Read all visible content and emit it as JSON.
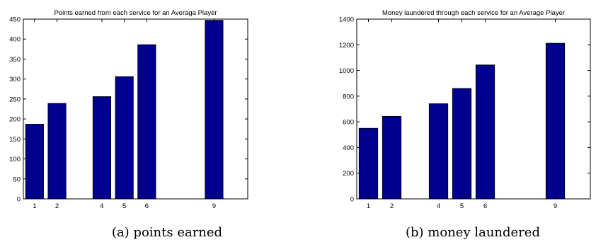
{
  "chart_data": [
    {
      "type": "bar",
      "title": "Points earned from each service for an Averaga Player",
      "xlabel": "",
      "ylabel": "",
      "categories": [
        "1",
        "2",
        "4",
        "5",
        "6",
        "9"
      ],
      "x": [
        1,
        2,
        4,
        5,
        6,
        9
      ],
      "values": [
        187,
        239,
        256,
        306,
        386,
        447
      ],
      "xlim": [
        0.5,
        10.5
      ],
      "ylim": [
        0,
        450
      ],
      "yticks": [
        0,
        50,
        100,
        150,
        200,
        250,
        300,
        350,
        400,
        450
      ],
      "grid": false,
      "bar_color": "#00008f",
      "caption": "(a) points earned"
    },
    {
      "type": "bar",
      "title": "Money laundered through each service for an Average Player",
      "xlabel": "",
      "ylabel": "",
      "categories": [
        "1",
        "2",
        "4",
        "5",
        "6",
        "9"
      ],
      "x": [
        1,
        2,
        4,
        5,
        6,
        9
      ],
      "values": [
        550,
        643,
        741,
        860,
        1043,
        1212
      ],
      "xlim": [
        0.5,
        10.5
      ],
      "ylim": [
        0,
        1400
      ],
      "yticks": [
        0,
        200,
        400,
        600,
        800,
        1000,
        1200,
        1400
      ],
      "grid": false,
      "bar_color": "#00008f",
      "caption": "(b) money laundered"
    }
  ]
}
